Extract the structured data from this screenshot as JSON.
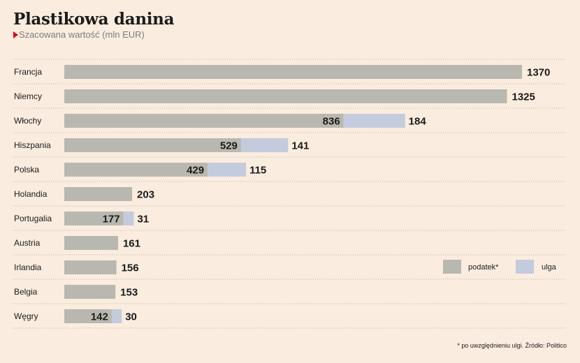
{
  "chart_data": {
    "type": "bar",
    "orientation": "horizontal",
    "stacked": true,
    "title": "Plastikowa danina",
    "subtitle": "Szacowana wartość (mln EUR)",
    "categories": [
      "Francja",
      "Niemcy",
      "Włochy",
      "Hiszpania",
      "Polska",
      "Holandia",
      "Portugalia",
      "Austria",
      "Irlandia",
      "Belgia",
      "Węgry"
    ],
    "series": [
      {
        "name": "podatek*",
        "color": "#b9b8b0",
        "values": [
          1370,
          1325,
          836,
          529,
          429,
          203,
          177,
          161,
          156,
          153,
          142
        ]
      },
      {
        "name": "ulga",
        "color": "#c4cbdc",
        "values": [
          null,
          null,
          184,
          141,
          115,
          null,
          31,
          null,
          null,
          null,
          30
        ]
      }
    ],
    "xlim": [
      0,
      1370
    ],
    "grid": false,
    "legend_position": "bottom-right",
    "footnote": "* po uwzględnieniu ulgi. Źródło: Politico"
  }
}
